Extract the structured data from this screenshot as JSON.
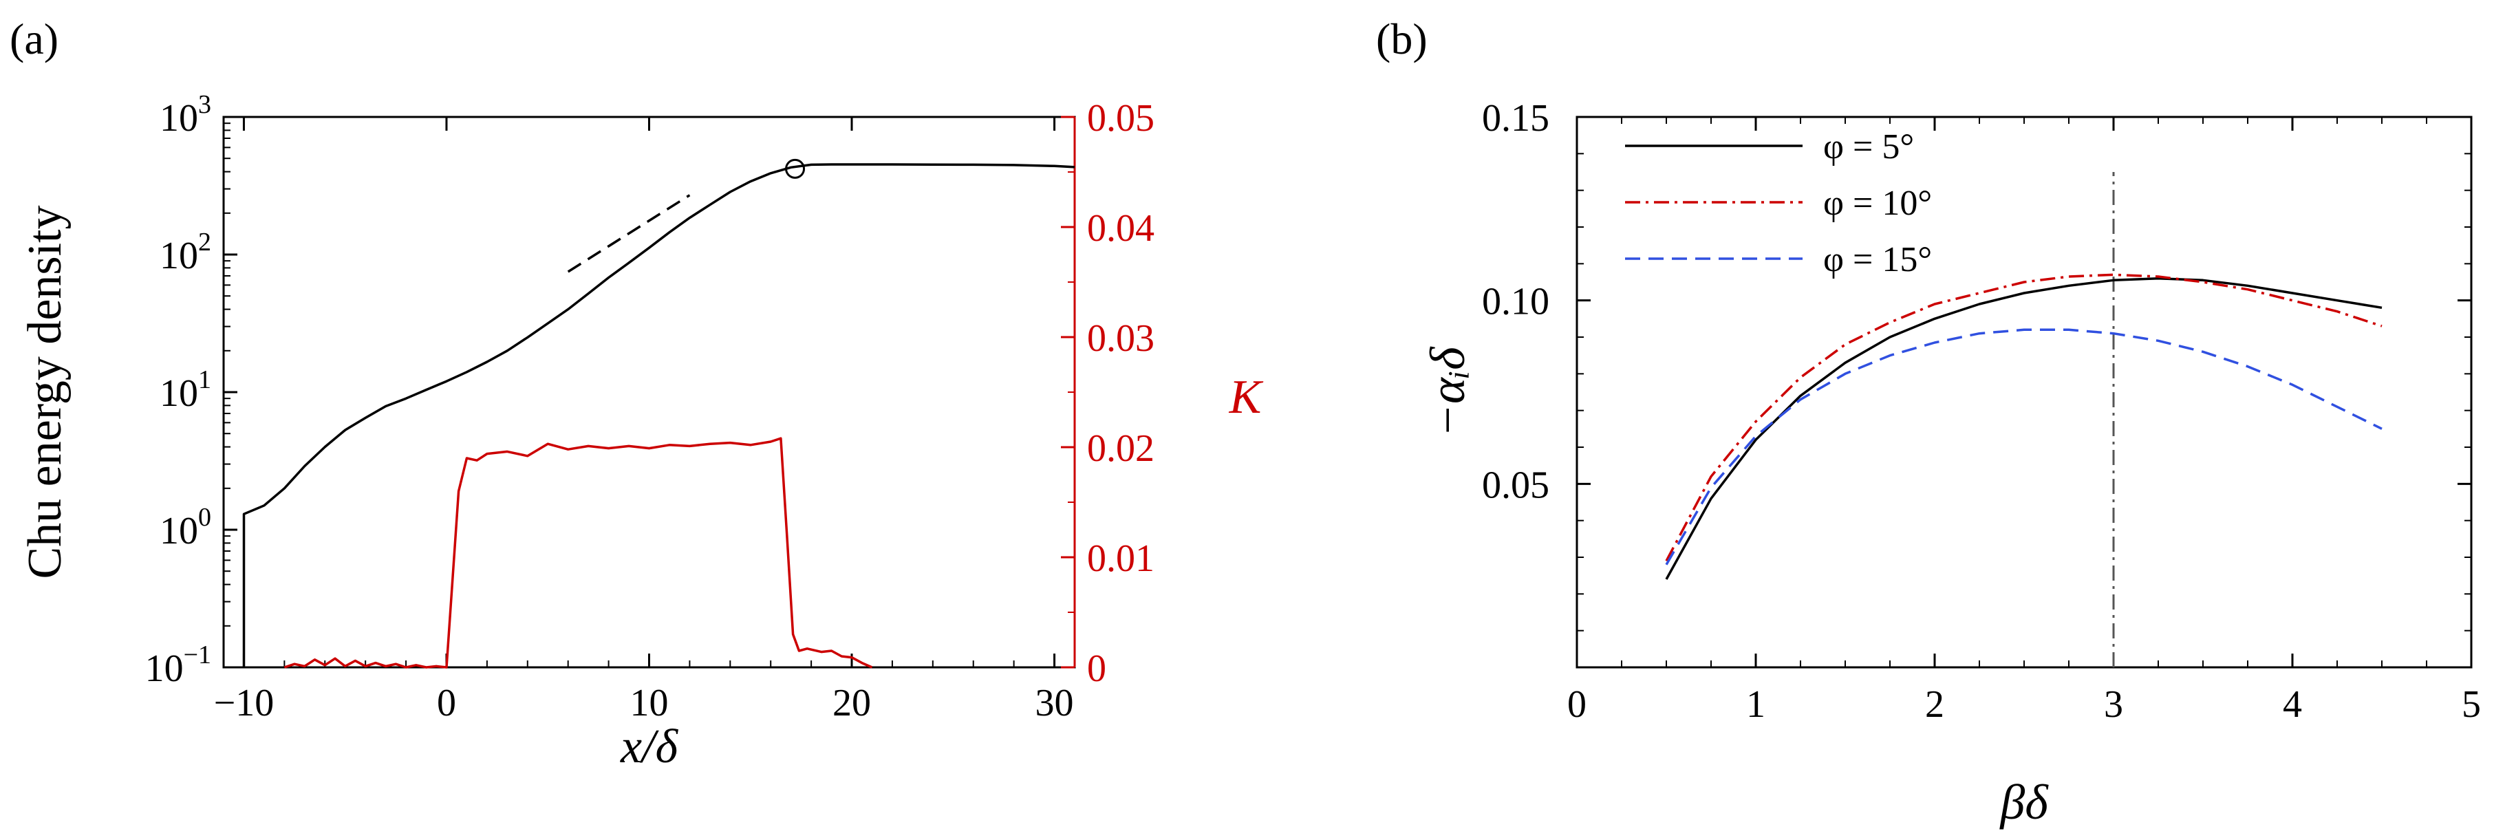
{
  "chart_data": [
    {
      "panel_label": "(a)",
      "type": "line",
      "xlabel": "x/δ",
      "ylabel_left": "Chu energy density",
      "ylabel_right": "K",
      "xlim": [
        -11,
        31
      ],
      "ylim_left": [
        0.1,
        1000
      ],
      "yscale_left": "log",
      "ylim_right": [
        0,
        0.05
      ],
      "xticks": [
        -10,
        0,
        10,
        20,
        30
      ],
      "xtick_labels": [
        "−10",
        "0",
        "10",
        "20",
        "30"
      ],
      "yticks_left": [
        0.1,
        1,
        10,
        100,
        1000
      ],
      "yticks_left_labels": [
        [
          "10",
          "−1"
        ],
        [
          "10",
          "0"
        ],
        [
          "10",
          "1"
        ],
        [
          "10",
          "2"
        ],
        [
          "10",
          "3"
        ]
      ],
      "yticks_right": [
        0,
        0.01,
        0.02,
        0.03,
        0.04,
        0.05
      ],
      "yticks_right_labels": [
        "0",
        "0.01",
        "0.02",
        "0.03",
        "0.04",
        "0.05"
      ],
      "right_axis_color": "#cc0000",
      "series": [
        {
          "axis": "left",
          "color": "#000000",
          "style": "solid",
          "x": [
            -10,
            -10,
            -9,
            -8,
            -7,
            -6,
            -5,
            -4,
            -3,
            -2,
            -1,
            0,
            1,
            2,
            3,
            4,
            5,
            6,
            7,
            8,
            9,
            10,
            11,
            12,
            13,
            14,
            15,
            16,
            17,
            18,
            19,
            20,
            22,
            24,
            26,
            28,
            30,
            31
          ],
          "y": [
            0.1,
            1.3,
            1.5,
            2.0,
            2.9,
            4.0,
            5.3,
            6.5,
            7.9,
            9.0,
            10.4,
            12.0,
            14.0,
            16.6,
            20.0,
            25.0,
            31.6,
            40.0,
            52.0,
            68.0,
            87.0,
            112,
            145,
            185,
            230,
            285,
            340,
            390,
            430,
            450,
            452,
            452,
            452,
            451,
            450,
            447,
            440,
            432
          ]
        },
        {
          "axis": "right",
          "color": "#cc0000",
          "style": "solid",
          "x": [
            -8,
            -7.5,
            -7,
            -6.5,
            -6,
            -5.5,
            -5,
            -4.5,
            -4,
            -3.5,
            -3,
            -2.5,
            -2,
            -1.5,
            -1,
            -0.5,
            0,
            0.3,
            0.6,
            1,
            1.5,
            2,
            3,
            4,
            5,
            6,
            7,
            8,
            9,
            10,
            11,
            12,
            13,
            14,
            15,
            16,
            16.5,
            16.8,
            17.1,
            17.4,
            17.8,
            18.5,
            19,
            19.5,
            20,
            20.5,
            21
          ],
          "y": [
            0.0,
            0.0003,
            0.0001,
            0.0007,
            0.0002,
            0.0008,
            0.0001,
            0.0006,
            0.0001,
            0.0004,
            0.0001,
            0.0003,
            0.0,
            0.0002,
            0.0,
            0.0001,
            0.0,
            0.008,
            0.016,
            0.019,
            0.0188,
            0.0194,
            0.0196,
            0.0192,
            0.0203,
            0.0198,
            0.0201,
            0.0199,
            0.0201,
            0.0199,
            0.0202,
            0.0201,
            0.0203,
            0.0204,
            0.0202,
            0.0205,
            0.0208,
            0.012,
            0.003,
            0.0015,
            0.0017,
            0.0014,
            0.0015,
            0.001,
            0.0009,
            0.0004,
            0.0
          ]
        },
        {
          "axis": "left",
          "color": "#000000",
          "style": "dashed",
          "x": [
            6,
            12
          ],
          "y": [
            75,
            270
          ]
        }
      ],
      "annotations": [
        {
          "type": "circle-marker",
          "x": 17.2,
          "y": 420
        }
      ]
    },
    {
      "panel_label": "(b)",
      "type": "line",
      "xlabel": "βδ",
      "ylabel": "−α_iδ",
      "xlim": [
        0,
        5
      ],
      "ylim": [
        0,
        0.15
      ],
      "xticks": [
        0,
        1,
        2,
        3,
        4,
        5
      ],
      "xtick_labels": [
        "0",
        "1",
        "2",
        "3",
        "4",
        "5"
      ],
      "yticks": [
        0.05,
        0.1,
        0.15
      ],
      "ytick_labels": [
        "0.05",
        "0.10",
        "0.15"
      ],
      "legend_position": "top-left",
      "vertical_reference_line": {
        "x": 3,
        "y": [
          0,
          0.135
        ],
        "color": "#555555",
        "style": "dash-dot"
      },
      "series": [
        {
          "name": "φ = 5°",
          "color": "#000000",
          "style": "solid",
          "x": [
            0.5,
            0.75,
            1.0,
            1.25,
            1.5,
            1.75,
            2.0,
            2.25,
            2.5,
            2.75,
            3.0,
            3.25,
            3.5,
            3.75,
            4.0,
            4.25,
            4.5
          ],
          "y": [
            0.024,
            0.046,
            0.062,
            0.074,
            0.083,
            0.09,
            0.095,
            0.099,
            0.102,
            0.104,
            0.1055,
            0.106,
            0.1055,
            0.104,
            0.102,
            0.1,
            0.098
          ]
        },
        {
          "name": "φ = 10°",
          "color": "#cc0000",
          "style": "dash-dot",
          "x": [
            0.5,
            0.75,
            1.0,
            1.25,
            1.5,
            1.75,
            2.0,
            2.25,
            2.5,
            2.75,
            3.0,
            3.25,
            3.5,
            3.75,
            4.0,
            4.25,
            4.5
          ],
          "y": [
            0.029,
            0.052,
            0.067,
            0.079,
            0.088,
            0.094,
            0.099,
            0.102,
            0.105,
            0.1065,
            0.107,
            0.1065,
            0.105,
            0.103,
            0.1,
            0.097,
            0.093
          ]
        },
        {
          "name": "φ = 15°",
          "color": "#3050e0",
          "style": "dashed",
          "x": [
            0.5,
            0.75,
            1.0,
            1.25,
            1.5,
            1.75,
            2.0,
            2.25,
            2.5,
            2.75,
            3.0,
            3.25,
            3.5,
            3.75,
            4.0,
            4.25,
            4.5
          ],
          "y": [
            0.028,
            0.049,
            0.063,
            0.073,
            0.08,
            0.085,
            0.0885,
            0.091,
            0.092,
            0.092,
            0.091,
            0.089,
            0.086,
            0.082,
            0.077,
            0.071,
            0.065
          ]
        }
      ]
    }
  ]
}
